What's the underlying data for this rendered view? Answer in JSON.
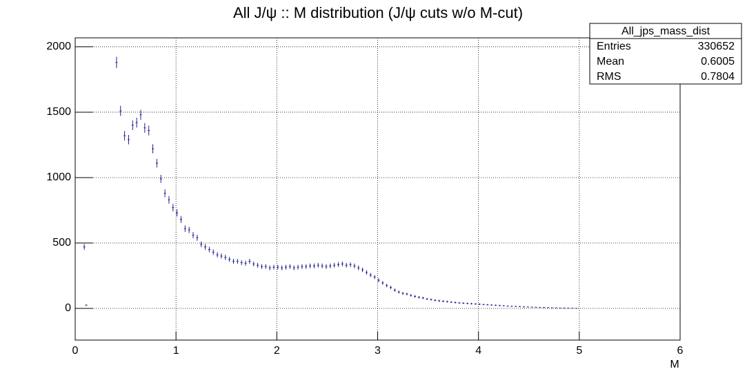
{
  "chart_data": {
    "type": "errorbar",
    "title": "All J/ψ :: M distribution (J/ψ cuts w/o M-cut)",
    "x_label": "M",
    "xlim": [
      0,
      6
    ],
    "xticks": [
      0,
      1,
      2,
      3,
      4,
      5,
      6
    ],
    "ylim": [
      -242,
      2068
    ],
    "yticks": [
      0,
      500,
      1000,
      1500,
      2000
    ],
    "grid": true,
    "color": "#1f1f8f",
    "x": [
      0.09,
      0.11,
      0.41,
      0.45,
      0.49,
      0.53,
      0.57,
      0.61,
      0.65,
      0.69,
      0.73,
      0.77,
      0.81,
      0.85,
      0.89,
      0.93,
      0.97,
      1.01,
      1.05,
      1.09,
      1.13,
      1.17,
      1.21,
      1.25,
      1.29,
      1.33,
      1.37,
      1.41,
      1.45,
      1.49,
      1.53,
      1.57,
      1.61,
      1.65,
      1.69,
      1.73,
      1.77,
      1.81,
      1.85,
      1.89,
      1.93,
      1.97,
      2.01,
      2.05,
      2.09,
      2.13,
      2.17,
      2.21,
      2.25,
      2.29,
      2.33,
      2.37,
      2.41,
      2.45,
      2.49,
      2.53,
      2.57,
      2.61,
      2.65,
      2.69,
      2.73,
      2.77,
      2.81,
      2.85,
      2.89,
      2.93,
      2.97,
      3.01,
      3.05,
      3.09,
      3.13,
      3.17,
      3.21,
      3.25,
      3.29,
      3.33,
      3.37,
      3.41,
      3.45,
      3.49,
      3.53,
      3.57,
      3.61,
      3.65,
      3.69,
      3.73,
      3.77,
      3.81,
      3.85,
      3.89,
      3.93,
      3.97,
      4.01,
      4.05,
      4.09,
      4.13,
      4.17,
      4.21,
      4.25,
      4.29,
      4.33,
      4.37,
      4.41,
      4.45,
      4.49,
      4.53,
      4.57,
      4.61,
      4.65,
      4.69,
      4.73,
      4.77,
      4.81,
      4.85,
      4.89,
      4.93,
      4.97
    ],
    "values": [
      470,
      25,
      1880,
      1510,
      1320,
      1290,
      1400,
      1420,
      1480,
      1380,
      1360,
      1220,
      1110,
      990,
      880,
      830,
      770,
      730,
      680,
      610,
      600,
      560,
      540,
      490,
      470,
      450,
      430,
      410,
      400,
      390,
      375,
      360,
      360,
      350,
      345,
      360,
      340,
      330,
      320,
      320,
      310,
      315,
      315,
      310,
      315,
      320,
      310,
      315,
      320,
      320,
      325,
      325,
      330,
      325,
      320,
      325,
      330,
      335,
      340,
      330,
      335,
      325,
      310,
      295,
      275,
      255,
      240,
      215,
      195,
      175,
      160,
      140,
      125,
      115,
      110,
      100,
      92,
      85,
      80,
      72,
      68,
      62,
      58,
      55,
      52,
      48,
      45,
      42,
      40,
      38,
      36,
      34,
      32,
      30,
      28,
      26,
      24,
      22,
      20,
      18,
      16,
      15,
      14,
      12,
      11,
      10,
      9,
      8,
      7,
      6,
      5,
      4,
      3,
      3,
      2,
      2,
      1
    ],
    "errors": [
      22,
      5,
      43,
      39,
      36,
      36,
      37,
      38,
      38,
      37,
      37,
      35,
      33,
      31,
      30,
      29,
      28,
      27,
      26,
      25,
      24,
      24,
      23,
      22,
      22,
      21,
      21,
      20,
      20,
      20,
      19,
      19,
      19,
      19,
      19,
      19,
      18,
      18,
      18,
      18,
      18,
      18,
      18,
      18,
      18,
      18,
      18,
      18,
      18,
      18,
      18,
      18,
      18,
      18,
      18,
      18,
      18,
      18,
      18,
      18,
      18,
      18,
      18,
      17,
      17,
      16,
      15,
      15,
      14,
      13,
      13,
      12,
      11,
      11,
      10,
      10,
      10,
      9,
      9,
      8,
      8,
      8,
      8,
      7,
      7,
      7,
      7,
      6,
      6,
      6,
      6,
      6,
      6,
      5,
      5,
      5,
      5,
      5,
      4,
      4,
      4,
      4,
      4,
      3,
      3,
      3,
      3,
      3,
      3,
      2,
      2,
      2,
      2,
      2,
      1,
      1,
      1
    ],
    "stats": {
      "title": "All_jps_mass_dist",
      "rows": [
        [
          "Entries",
          330652
        ],
        [
          "Mean",
          0.6005
        ],
        [
          "RMS",
          0.7804
        ]
      ]
    }
  }
}
